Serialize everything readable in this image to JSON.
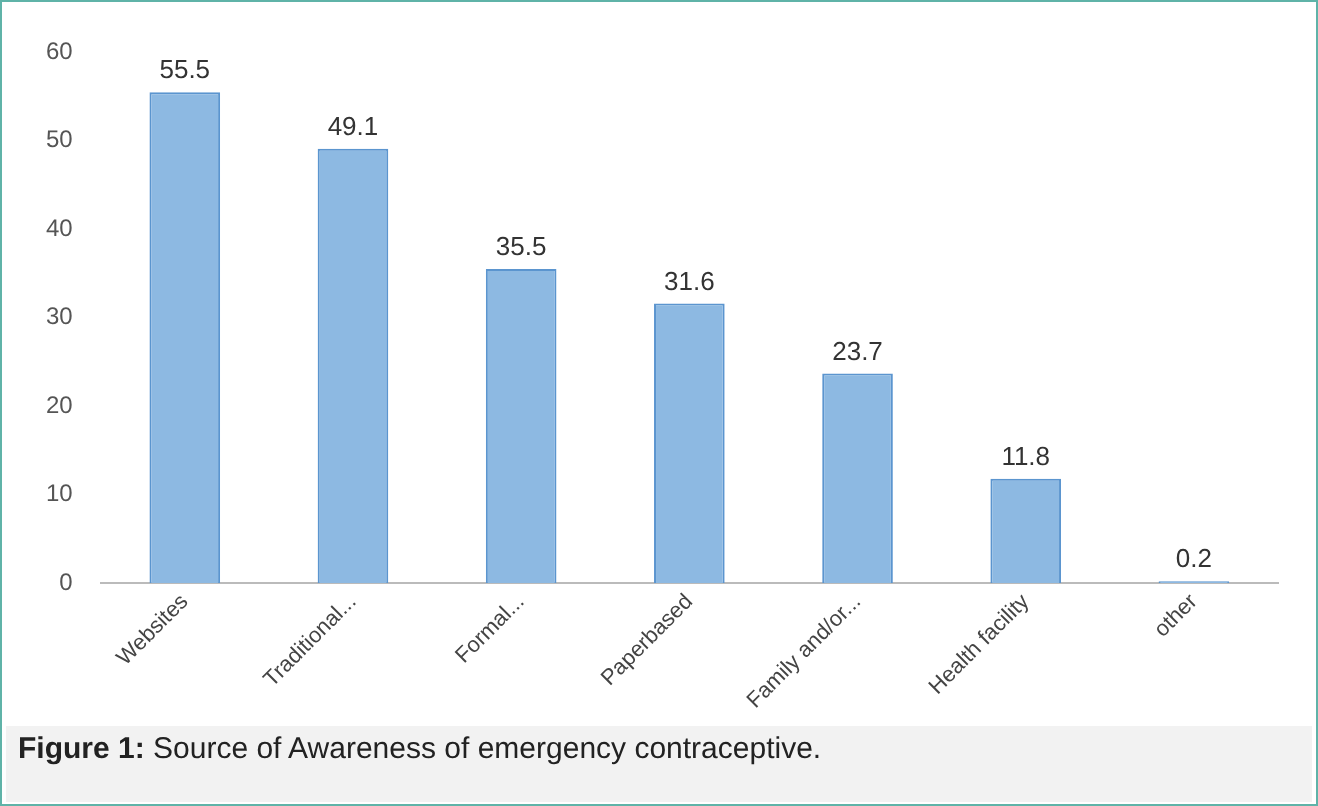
{
  "chart_data": {
    "type": "bar",
    "categories": [
      "Websites",
      "Traditional...",
      "Formal...",
      "Paperbased",
      "Family and/or...",
      "Health facility",
      "other"
    ],
    "values": [
      55.5,
      49.1,
      35.5,
      31.6,
      23.7,
      11.8,
      0.2
    ],
    "color": "#8db9e2",
    "ylim": [
      0,
      60
    ],
    "yticks": [
      0,
      10,
      20,
      30,
      40,
      50,
      60
    ],
    "grid": false,
    "data_labels": true,
    "annotations": [
      "Figure 1: Source of Awareness of emergency contraceptive."
    ]
  }
}
